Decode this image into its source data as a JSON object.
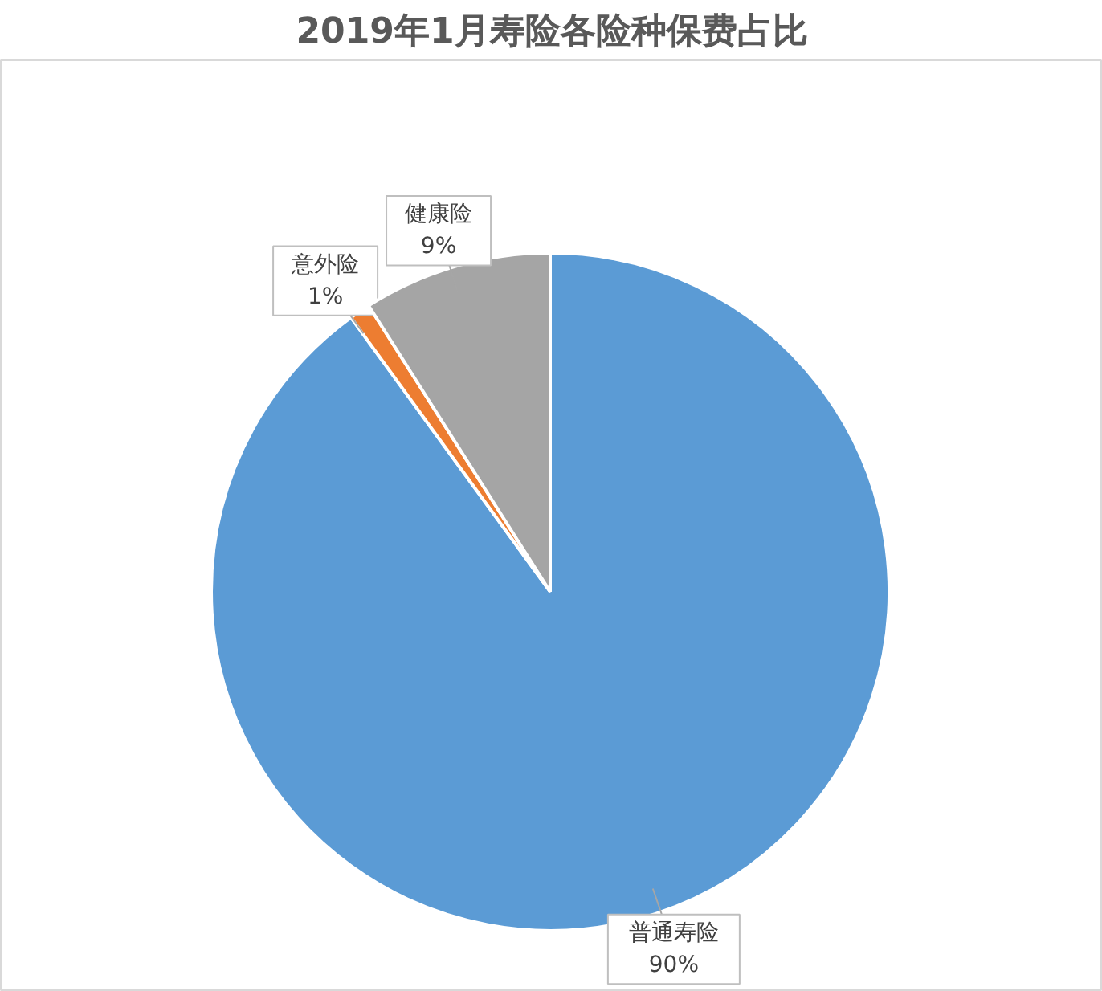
{
  "chart_data": {
    "type": "pie",
    "title": "2019年1月寿险各险种保费占比",
    "categories": [
      "普通寿险",
      "意外险",
      "健康险"
    ],
    "values": [
      90,
      1,
      9
    ],
    "colors": [
      "#5b9bd5",
      "#ed7d31",
      "#a5a5a5"
    ],
    "value_labels": [
      "90%",
      "1%",
      "9%"
    ]
  }
}
